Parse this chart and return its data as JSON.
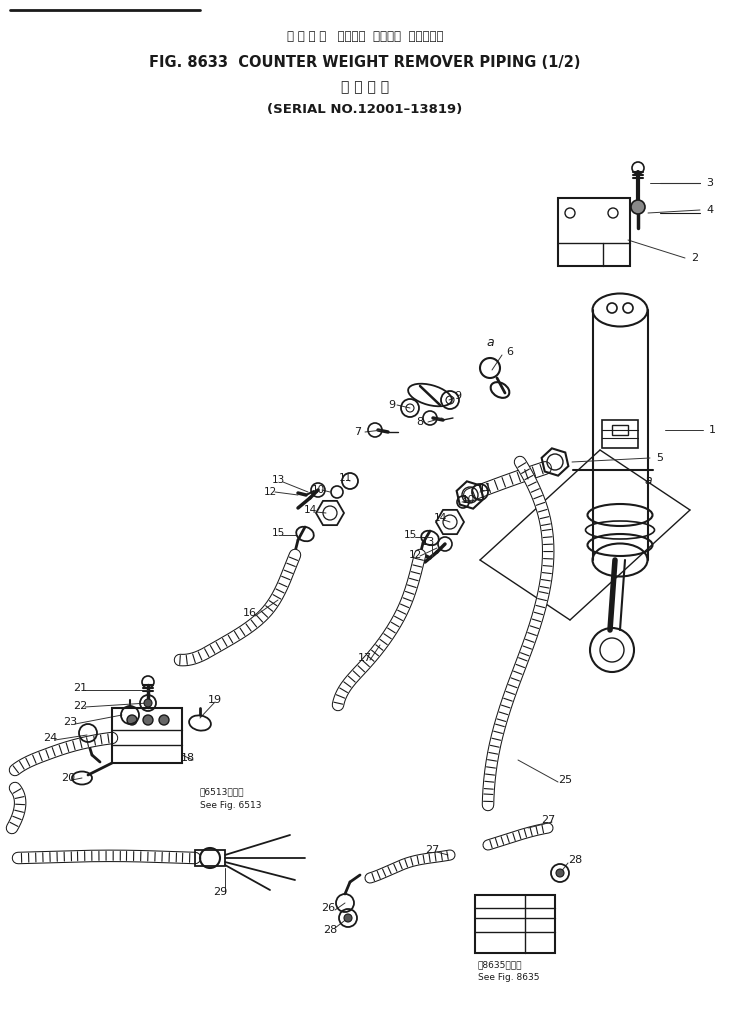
{
  "title_line1": "カ ウ ン タ   ウエイト  リムーバ  パイピング",
  "title_line2": "FIG. 8633  COUNTER WEIGHT REMOVER PIPING (1/2)",
  "title_line3": "適 用 号 機",
  "title_line4": "(SERIAL NO.12001–13819)",
  "bg_color": "#ffffff",
  "line_color": "#1a1a1a",
  "figsize": [
    7.31,
    10.24
  ],
  "dpi": 100
}
